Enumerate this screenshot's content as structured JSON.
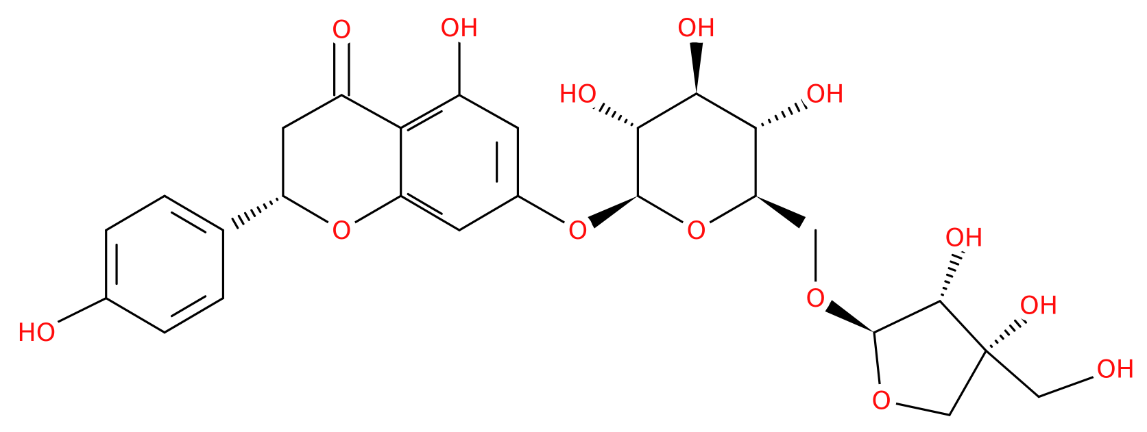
{
  "atoms": [
    {
      "label": "O"
    },
    {
      "label": "OH"
    },
    {
      "label": "O"
    },
    {
      "label": "O"
    },
    {
      "label": "HO"
    },
    {
      "label": "O"
    },
    {
      "label": "HO"
    },
    {
      "label": "OH"
    },
    {
      "label": "OH"
    },
    {
      "label": "O"
    },
    {
      "label": "O"
    },
    {
      "label": "OH"
    },
    {
      "label": "OH"
    },
    {
      "label": "OH"
    }
  ]
}
